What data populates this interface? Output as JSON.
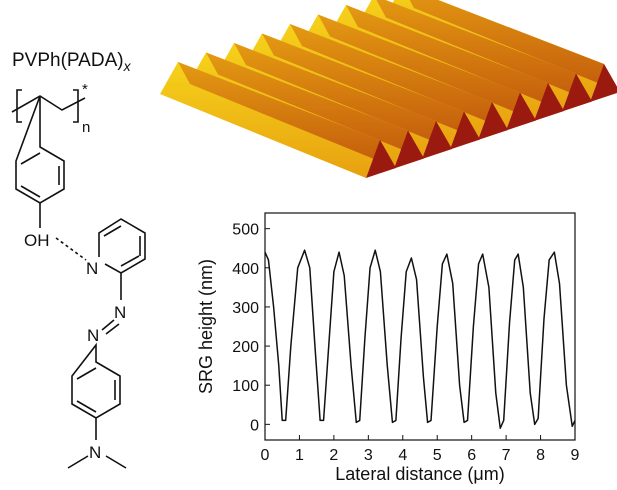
{
  "structure": {
    "name": "PVPh(PADA)",
    "name_subscript": "x",
    "repeat": "n",
    "end": "*",
    "hydroxyl": "OH",
    "pyridine_n": "N",
    "azo_n1": "N",
    "azo_n2": "N",
    "amine_n": "N"
  },
  "chart_data": {
    "type": "line",
    "xlabel": "Lateral distance (μm)",
    "ylabel": "SRG height (nm)",
    "x": [
      0,
      0.1,
      0.25,
      0.4,
      0.5,
      0.6,
      0.75,
      0.95,
      1.15,
      1.3,
      1.45,
      1.6,
      1.7,
      1.85,
      2.0,
      2.15,
      2.3,
      2.5,
      2.65,
      2.75,
      2.9,
      3.05,
      3.2,
      3.35,
      3.55,
      3.7,
      3.8,
      3.95,
      4.1,
      4.25,
      4.4,
      4.6,
      4.72,
      4.82,
      5.0,
      5.15,
      5.28,
      5.45,
      5.65,
      5.78,
      5.88,
      6.05,
      6.2,
      6.32,
      6.5,
      6.7,
      6.83,
      6.93,
      7.1,
      7.25,
      7.35,
      7.5,
      7.7,
      7.83,
      7.93,
      8.1,
      8.25,
      8.4,
      8.55,
      8.75,
      8.92,
      9.0
    ],
    "series": [
      {
        "color": "#111111",
        "values": [
          440,
          420,
          300,
          150,
          10,
          10,
          200,
          400,
          445,
          400,
          200,
          10,
          10,
          200,
          390,
          440,
          380,
          150,
          5,
          10,
          220,
          400,
          445,
          390,
          150,
          5,
          10,
          220,
          390,
          425,
          370,
          120,
          5,
          10,
          250,
          410,
          435,
          360,
          100,
          5,
          10,
          250,
          410,
          435,
          350,
          80,
          -10,
          10,
          260,
          420,
          435,
          350,
          80,
          0,
          15,
          270,
          420,
          440,
          360,
          100,
          -5,
          10
        ]
      }
    ],
    "xlim": [
      0,
      9
    ],
    "xticks": [
      0,
      1,
      2,
      3,
      4,
      5,
      6,
      7,
      8,
      9
    ],
    "ylim": [
      -40,
      540
    ],
    "yticks": [
      0,
      100,
      200,
      300,
      400,
      500
    ]
  }
}
